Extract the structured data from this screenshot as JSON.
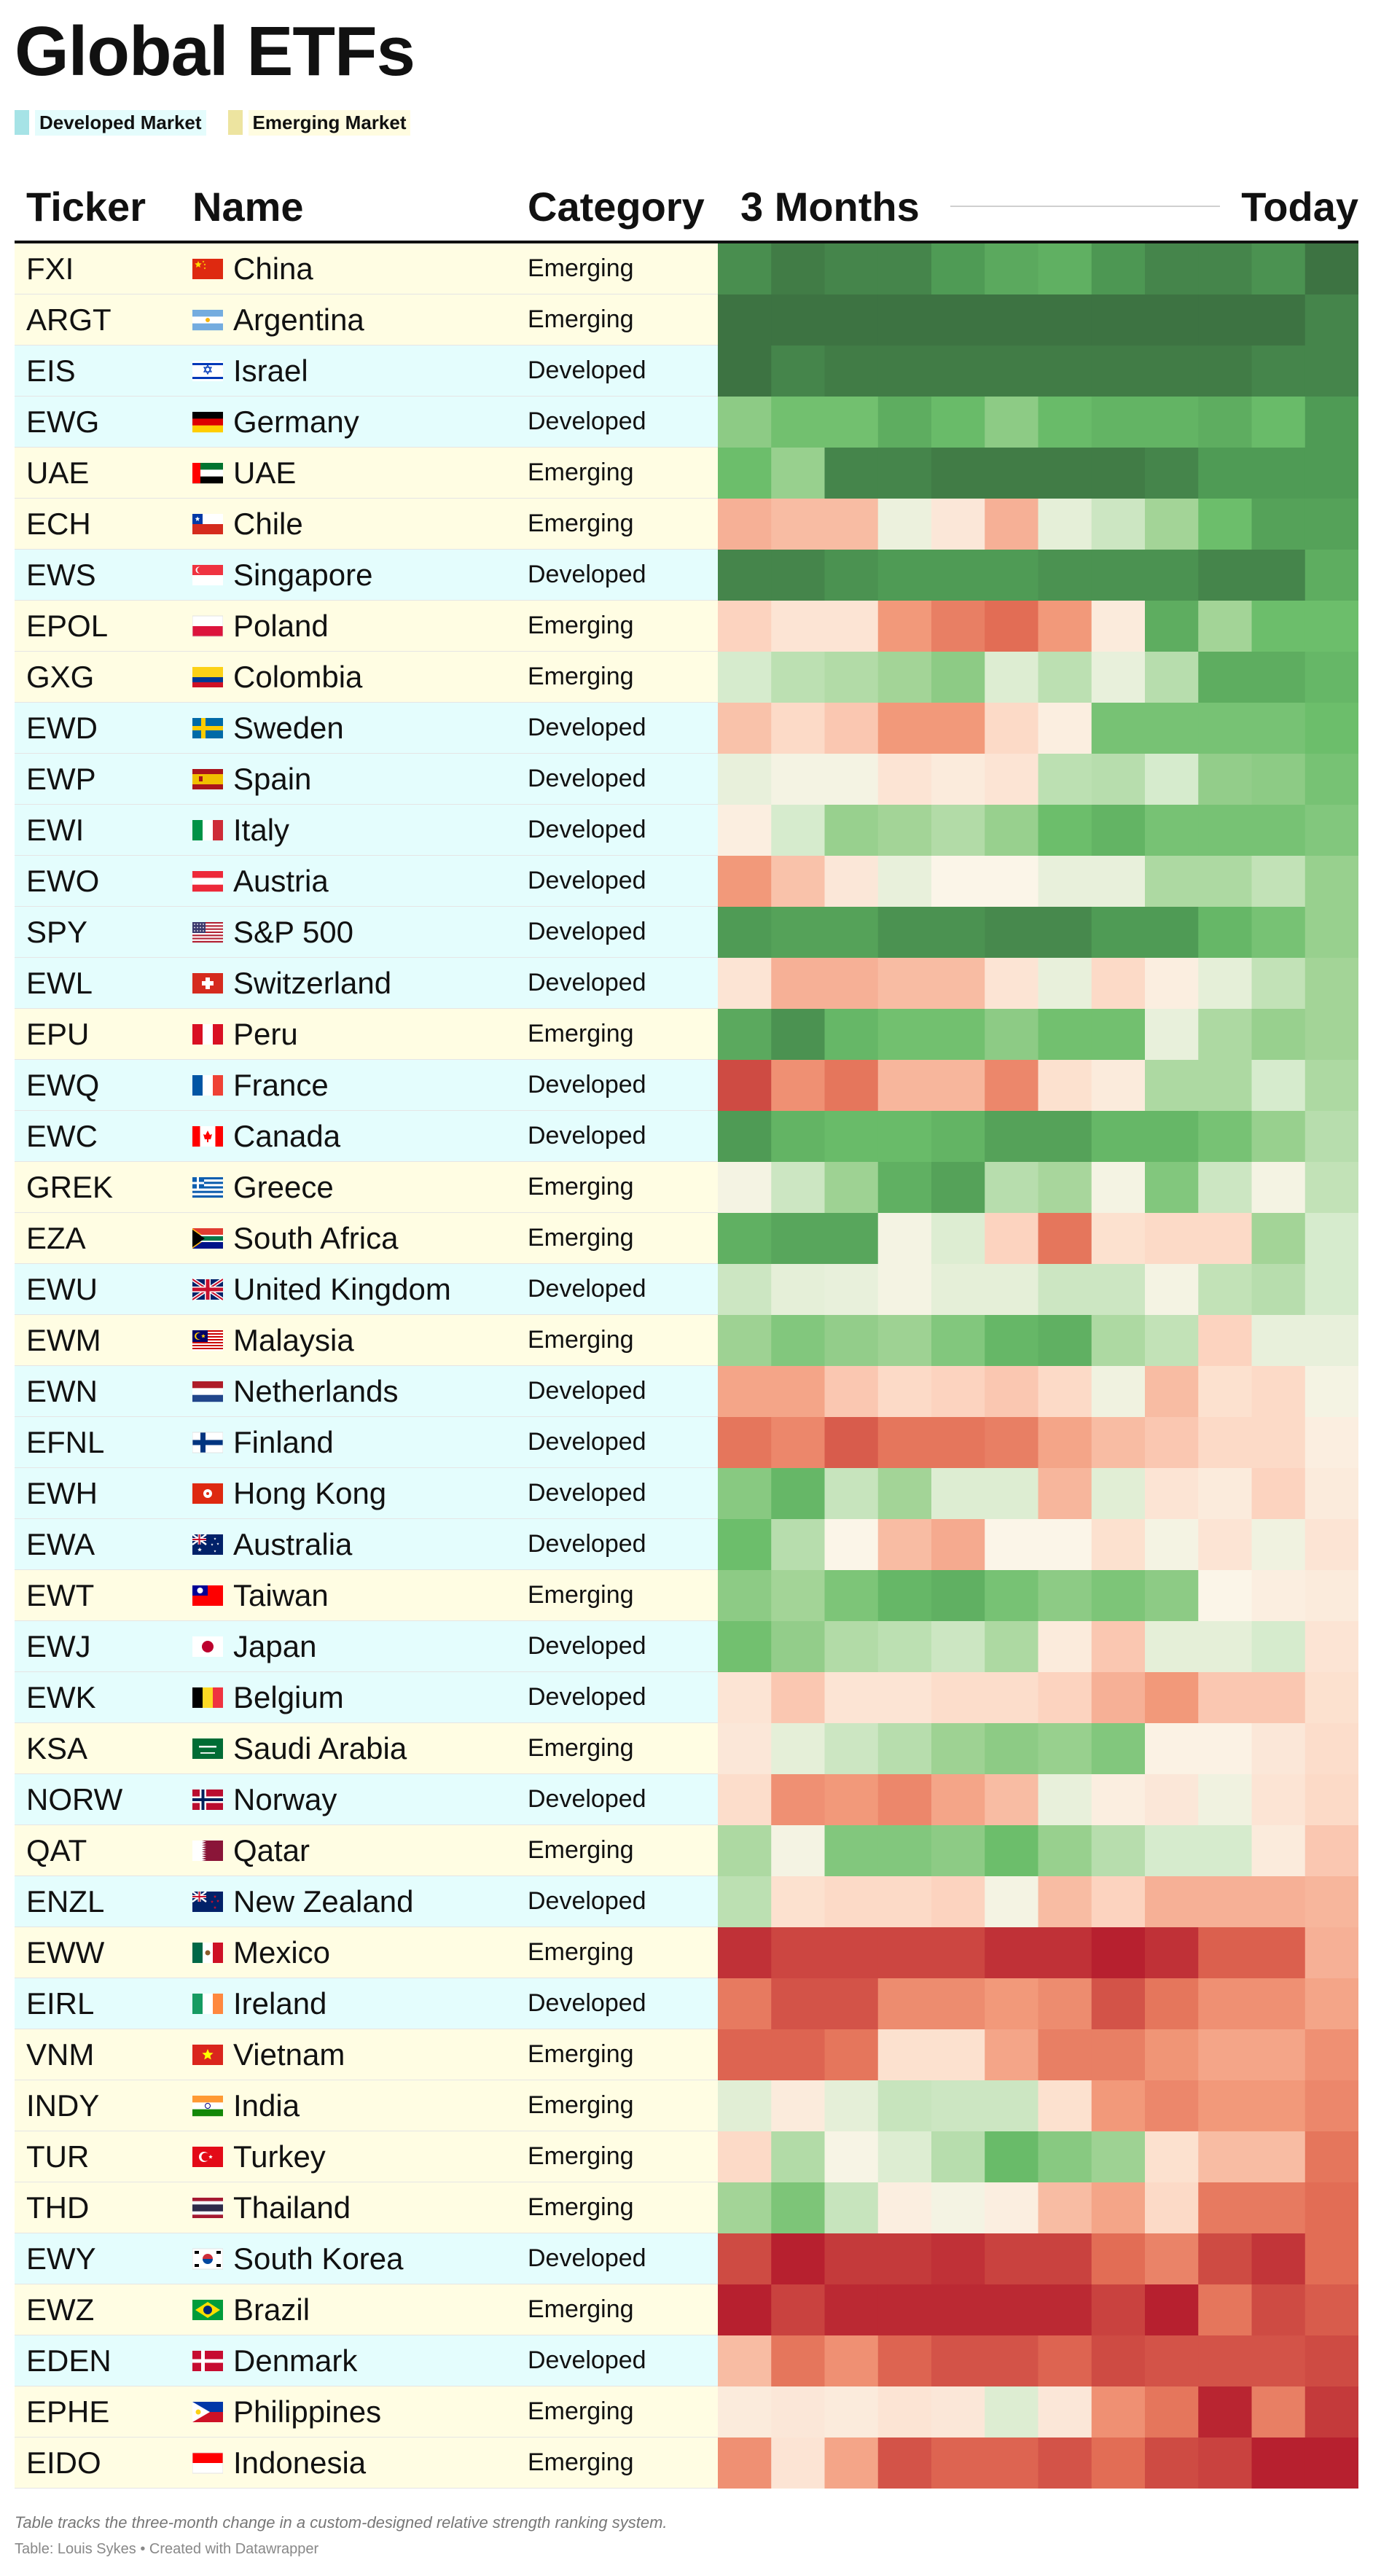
{
  "title": "Global ETFs",
  "legend": [
    {
      "label": "Developed Market",
      "color": "#a6e3e6",
      "bg": "#e4fcfc"
    },
    {
      "label": "Emerging Market",
      "color": "#ede4a0",
      "bg": "#fffce0"
    }
  ],
  "header": {
    "ticker": "Ticker",
    "name": "Name",
    "category": "Category",
    "months": "3 Months",
    "today": "Today"
  },
  "row_colors": {
    "Developed": "#e4fdfd",
    "Emerging": "#fffde3"
  },
  "footnote": "Table tracks the three-month change in a custom-designed relative strength ranking system.",
  "source": "Table: Louis Sykes • Created with Datawrapper",
  "chart_data": {
    "type": "heatmap",
    "columns": 12,
    "x_labels": [
      "3 Months",
      "Today"
    ],
    "color_scale": {
      "stops": [
        {
          "v": 0,
          "c": "#b2182b"
        },
        {
          "v": 0.1,
          "c": "#c9423f"
        },
        {
          "v": 0.2,
          "c": "#e26d55"
        },
        {
          "v": 0.3,
          "c": "#f2997a"
        },
        {
          "v": 0.4,
          "c": "#fcd3bf"
        },
        {
          "v": 0.5,
          "c": "#fbf5e8"
        },
        {
          "v": 0.6,
          "c": "#d6ebcd"
        },
        {
          "v": 0.7,
          "c": "#a3d497"
        },
        {
          "v": 0.8,
          "c": "#6cbe6b"
        },
        {
          "v": 0.9,
          "c": "#4f9b55"
        },
        {
          "v": 1,
          "c": "#3b6e40"
        }
      ]
    },
    "rows": [
      {
        "ticker": "FXI",
        "name": "China",
        "category": "Emerging",
        "flag": "china-flag-icon",
        "values": [
          0.93,
          0.97,
          0.95,
          0.95,
          0.9,
          0.86,
          0.84,
          0.91,
          0.95,
          0.95,
          0.92,
          0.99
        ]
      },
      {
        "ticker": "ARGT",
        "name": "Argentina",
        "category": "Emerging",
        "flag": "argentina-flag-icon",
        "values": [
          0.99,
          0.99,
          0.99,
          0.99,
          0.99,
          0.99,
          0.99,
          0.99,
          0.99,
          0.99,
          0.99,
          0.95
        ]
      },
      {
        "ticker": "EIS",
        "name": "Israel",
        "category": "Developed",
        "flag": "israel-flag-icon",
        "values": [
          0.99,
          0.95,
          0.97,
          0.97,
          0.97,
          0.97,
          0.97,
          0.97,
          0.97,
          0.97,
          0.95,
          0.95
        ]
      },
      {
        "ticker": "EWG",
        "name": "Germany",
        "category": "Developed",
        "flag": "germany-flag-icon",
        "values": [
          0.74,
          0.79,
          0.79,
          0.85,
          0.81,
          0.74,
          0.81,
          0.83,
          0.83,
          0.85,
          0.81,
          0.9
        ]
      },
      {
        "ticker": "UAE",
        "name": "UAE",
        "category": "Emerging",
        "flag": "uae-flag-icon",
        "values": [
          0.8,
          0.72,
          0.95,
          0.95,
          0.97,
          0.97,
          0.97,
          0.97,
          0.95,
          0.9,
          0.9,
          0.9
        ]
      },
      {
        "ticker": "ECH",
        "name": "Chile",
        "category": "Emerging",
        "flag": "chile-flag-icon",
        "values": [
          0.34,
          0.36,
          0.36,
          0.54,
          0.46,
          0.34,
          0.56,
          0.62,
          0.7,
          0.8,
          0.88,
          0.88
        ]
      },
      {
        "ticker": "EWS",
        "name": "Singapore",
        "category": "Developed",
        "flag": "singapore-flag-icon",
        "values": [
          0.95,
          0.95,
          0.92,
          0.9,
          0.9,
          0.9,
          0.92,
          0.92,
          0.92,
          0.95,
          0.95,
          0.85
        ]
      },
      {
        "ticker": "EPOL",
        "name": "Poland",
        "category": "Emerging",
        "flag": "poland-flag-icon",
        "values": [
          0.4,
          0.45,
          0.45,
          0.3,
          0.24,
          0.2,
          0.3,
          0.47,
          0.85,
          0.7,
          0.8,
          0.8
        ]
      },
      {
        "ticker": "GXG",
        "name": "Colombia",
        "category": "Emerging",
        "flag": "colombia-flag-icon",
        "values": [
          0.6,
          0.65,
          0.67,
          0.7,
          0.74,
          0.58,
          0.65,
          0.55,
          0.66,
          0.85,
          0.85,
          0.82
        ]
      },
      {
        "ticker": "EWD",
        "name": "Sweden",
        "category": "Developed",
        "flag": "sweden-flag-icon",
        "values": [
          0.37,
          0.42,
          0.38,
          0.3,
          0.3,
          0.42,
          0.48,
          0.78,
          0.78,
          0.78,
          0.78,
          0.8
        ]
      },
      {
        "ticker": "EWP",
        "name": "Spain",
        "category": "Developed",
        "flag": "spain-flag-icon",
        "values": [
          0.55,
          0.52,
          0.52,
          0.45,
          0.47,
          0.45,
          0.65,
          0.66,
          0.6,
          0.73,
          0.74,
          0.78
        ]
      },
      {
        "ticker": "EWI",
        "name": "Italy",
        "category": "Developed",
        "flag": "italy-flag-icon",
        "values": [
          0.48,
          0.6,
          0.72,
          0.7,
          0.67,
          0.72,
          0.8,
          0.83,
          0.78,
          0.78,
          0.78,
          0.76
        ]
      },
      {
        "ticker": "EWO",
        "name": "Austria",
        "category": "Developed",
        "flag": "austria-flag-icon",
        "values": [
          0.3,
          0.37,
          0.46,
          0.55,
          0.5,
          0.5,
          0.55,
          0.55,
          0.68,
          0.68,
          0.64,
          0.72
        ]
      },
      {
        "ticker": "SPY",
        "name": "S&P 500",
        "category": "Developed",
        "flag": "usa-flag-icon",
        "values": [
          0.9,
          0.88,
          0.88,
          0.92,
          0.92,
          0.94,
          0.94,
          0.9,
          0.9,
          0.82,
          0.78,
          0.72
        ]
      },
      {
        "ticker": "EWL",
        "name": "Switzerland",
        "category": "Developed",
        "flag": "switzerland-flag-icon",
        "values": [
          0.45,
          0.34,
          0.34,
          0.36,
          0.36,
          0.45,
          0.55,
          0.42,
          0.48,
          0.56,
          0.64,
          0.7
        ]
      },
      {
        "ticker": "EPU",
        "name": "Peru",
        "category": "Emerging",
        "flag": "peru-flag-icon",
        "values": [
          0.86,
          0.92,
          0.82,
          0.79,
          0.79,
          0.74,
          0.79,
          0.79,
          0.55,
          0.68,
          0.72,
          0.7
        ]
      },
      {
        "ticker": "EWQ",
        "name": "France",
        "category": "Developed",
        "flag": "france-flag-icon",
        "values": [
          0.12,
          0.28,
          0.22,
          0.35,
          0.35,
          0.26,
          0.44,
          0.47,
          0.68,
          0.68,
          0.6,
          0.68
        ]
      },
      {
        "ticker": "EWC",
        "name": "Canada",
        "category": "Developed",
        "flag": "canada-flag-icon",
        "values": [
          0.9,
          0.83,
          0.81,
          0.81,
          0.83,
          0.88,
          0.88,
          0.82,
          0.82,
          0.78,
          0.72,
          0.66
        ]
      },
      {
        "ticker": "GREK",
        "name": "Greece",
        "category": "Emerging",
        "flag": "greece-flag-icon",
        "values": [
          0.52,
          0.62,
          0.71,
          0.84,
          0.88,
          0.66,
          0.69,
          0.52,
          0.76,
          0.62,
          0.52,
          0.64
        ]
      },
      {
        "ticker": "EZA",
        "name": "South Africa",
        "category": "Emerging",
        "flag": "south-africa-flag-icon",
        "values": [
          0.84,
          0.87,
          0.87,
          0.52,
          0.58,
          0.4,
          0.22,
          0.44,
          0.42,
          0.42,
          0.7,
          0.6
        ]
      },
      {
        "ticker": "EWU",
        "name": "United Kingdom",
        "category": "Developed",
        "flag": "uk-flag-icon",
        "values": [
          0.62,
          0.56,
          0.55,
          0.52,
          0.56,
          0.56,
          0.62,
          0.62,
          0.52,
          0.64,
          0.66,
          0.6
        ]
      },
      {
        "ticker": "EWM",
        "name": "Malaysia",
        "category": "Emerging",
        "flag": "malaysia-flag-icon",
        "values": [
          0.71,
          0.76,
          0.73,
          0.71,
          0.76,
          0.82,
          0.84,
          0.68,
          0.64,
          0.4,
          0.55,
          0.55
        ]
      },
      {
        "ticker": "EWN",
        "name": "Netherlands",
        "category": "Developed",
        "flag": "netherlands-flag-icon",
        "values": [
          0.32,
          0.32,
          0.38,
          0.42,
          0.4,
          0.38,
          0.42,
          0.53,
          0.36,
          0.44,
          0.42,
          0.52
        ]
      },
      {
        "ticker": "EFNL",
        "name": "Finland",
        "category": "Developed",
        "flag": "finland-flag-icon",
        "values": [
          0.22,
          0.26,
          0.16,
          0.22,
          0.22,
          0.24,
          0.32,
          0.36,
          0.38,
          0.42,
          0.42,
          0.48
        ]
      },
      {
        "ticker": "EWH",
        "name": "Hong Kong",
        "category": "Developed",
        "flag": "hong-kong-flag-icon",
        "values": [
          0.75,
          0.82,
          0.63,
          0.7,
          0.58,
          0.58,
          0.35,
          0.57,
          0.45,
          0.47,
          0.4,
          0.47
        ]
      },
      {
        "ticker": "EWA",
        "name": "Australia",
        "category": "Developed",
        "flag": "australia-flag-icon",
        "values": [
          0.8,
          0.66,
          0.5,
          0.36,
          0.33,
          0.5,
          0.5,
          0.44,
          0.52,
          0.45,
          0.53,
          0.45
        ]
      },
      {
        "ticker": "EWT",
        "name": "Taiwan",
        "category": "Emerging",
        "flag": "taiwan-flag-icon",
        "values": [
          0.74,
          0.7,
          0.77,
          0.82,
          0.84,
          0.78,
          0.74,
          0.77,
          0.74,
          0.5,
          0.48,
          0.47
        ]
      },
      {
        "ticker": "EWJ",
        "name": "Japan",
        "category": "Developed",
        "flag": "japan-flag-icon",
        "values": [
          0.79,
          0.73,
          0.67,
          0.65,
          0.62,
          0.68,
          0.47,
          0.38,
          0.56,
          0.56,
          0.6,
          0.45
        ]
      },
      {
        "ticker": "EWK",
        "name": "Belgium",
        "category": "Developed",
        "flag": "belgium-flag-icon",
        "values": [
          0.45,
          0.38,
          0.45,
          0.45,
          0.43,
          0.43,
          0.4,
          0.34,
          0.3,
          0.38,
          0.38,
          0.44
        ]
      },
      {
        "ticker": "KSA",
        "name": "Saudi Arabia",
        "category": "Emerging",
        "flag": "saudi-arabia-flag-icon",
        "values": [
          0.46,
          0.56,
          0.62,
          0.66,
          0.71,
          0.74,
          0.72,
          0.76,
          0.49,
          0.49,
          0.46,
          0.43
        ]
      },
      {
        "ticker": "NORW",
        "name": "Norway",
        "category": "Developed",
        "flag": "norway-flag-icon",
        "values": [
          0.43,
          0.28,
          0.3,
          0.26,
          0.32,
          0.36,
          0.55,
          0.48,
          0.46,
          0.53,
          0.45,
          0.42
        ]
      },
      {
        "ticker": "QAT",
        "name": "Qatar",
        "category": "Emerging",
        "flag": "qatar-flag-icon",
        "values": [
          0.68,
          0.52,
          0.76,
          0.76,
          0.74,
          0.8,
          0.72,
          0.66,
          0.6,
          0.6,
          0.47,
          0.38
        ]
      },
      {
        "ticker": "ENZL",
        "name": "New Zealand",
        "category": "Developed",
        "flag": "new-zealand-flag-icon",
        "values": [
          0.65,
          0.44,
          0.42,
          0.42,
          0.4,
          0.52,
          0.36,
          0.4,
          0.34,
          0.34,
          0.34,
          0.35
        ]
      },
      {
        "ticker": "EWW",
        "name": "Mexico",
        "category": "Emerging",
        "flag": "mexico-flag-icon",
        "values": [
          0.06,
          0.11,
          0.11,
          0.11,
          0.11,
          0.06,
          0.06,
          0.02,
          0.06,
          0.17,
          0.17,
          0.34
        ]
      },
      {
        "ticker": "EIRL",
        "name": "Ireland",
        "category": "Developed",
        "flag": "ireland-flag-icon",
        "values": [
          0.23,
          0.14,
          0.14,
          0.27,
          0.27,
          0.3,
          0.27,
          0.14,
          0.22,
          0.28,
          0.28,
          0.32
        ]
      },
      {
        "ticker": "VNM",
        "name": "Vietnam",
        "category": "Emerging",
        "flag": "vietnam-flag-icon",
        "values": [
          0.18,
          0.18,
          0.22,
          0.44,
          0.44,
          0.32,
          0.24,
          0.24,
          0.29,
          0.32,
          0.32,
          0.28
        ]
      },
      {
        "ticker": "INDY",
        "name": "India",
        "category": "Emerging",
        "flag": "india-flag-icon",
        "values": [
          0.57,
          0.47,
          0.56,
          0.63,
          0.62,
          0.62,
          0.44,
          0.3,
          0.26,
          0.3,
          0.3,
          0.26
        ]
      },
      {
        "ticker": "TUR",
        "name": "Turkey",
        "category": "Emerging",
        "flag": "turkey-flag-icon",
        "values": [
          0.42,
          0.67,
          0.51,
          0.58,
          0.66,
          0.81,
          0.75,
          0.71,
          0.44,
          0.36,
          0.36,
          0.22
        ]
      },
      {
        "ticker": "THD",
        "name": "Thailand",
        "category": "Emerging",
        "flag": "thailand-flag-icon",
        "values": [
          0.7,
          0.77,
          0.63,
          0.48,
          0.52,
          0.48,
          0.36,
          0.32,
          0.42,
          0.23,
          0.23,
          0.2
        ]
      },
      {
        "ticker": "EWY",
        "name": "South Korea",
        "category": "Developed",
        "flag": "south-korea-flag-icon",
        "values": [
          0.12,
          0.02,
          0.08,
          0.08,
          0.06,
          0.1,
          0.1,
          0.2,
          0.25,
          0.12,
          0.07,
          0.2
        ]
      },
      {
        "ticker": "EWZ",
        "name": "Brazil",
        "category": "Emerging",
        "flag": "brazil-flag-icon",
        "values": [
          0.02,
          0.1,
          0.04,
          0.04,
          0.04,
          0.04,
          0.04,
          0.1,
          0.02,
          0.22,
          0.12,
          0.16
        ]
      },
      {
        "ticker": "EDEN",
        "name": "Denmark",
        "category": "Developed",
        "flag": "denmark-flag-icon",
        "values": [
          0.36,
          0.22,
          0.28,
          0.18,
          0.14,
          0.14,
          0.18,
          0.12,
          0.14,
          0.14,
          0.14,
          0.12
        ]
      },
      {
        "ticker": "EPHE",
        "name": "Philippines",
        "category": "Emerging",
        "flag": "philippines-flag-icon",
        "values": [
          0.47,
          0.46,
          0.47,
          0.45,
          0.46,
          0.58,
          0.46,
          0.28,
          0.22,
          0.03,
          0.24,
          0.08
        ]
      },
      {
        "ticker": "EIDO",
        "name": "Indonesia",
        "category": "Emerging",
        "flag": "indonesia-flag-icon",
        "values": [
          0.28,
          0.45,
          0.32,
          0.14,
          0.18,
          0.18,
          0.14,
          0.2,
          0.12,
          0.1,
          0.02,
          0.02
        ]
      }
    ]
  }
}
